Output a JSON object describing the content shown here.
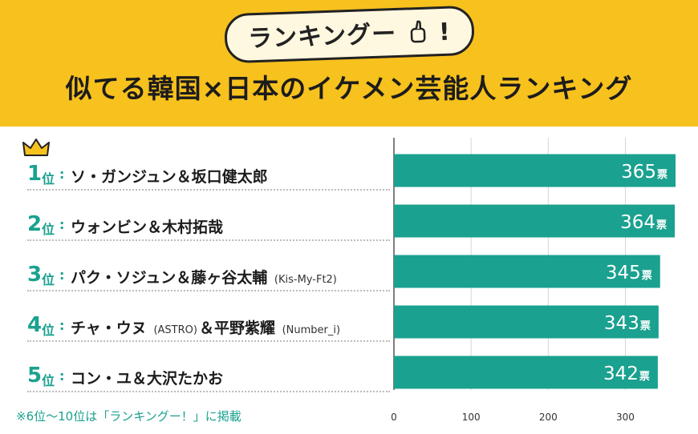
{
  "header": {
    "logo_text": "ランキングー",
    "logo_mark": "!",
    "title": "似てる韓国×日本のイケメン芸能人ランキング"
  },
  "footnote": "※6位〜10位は「ランキングー！」に掲載",
  "colors": {
    "header_bg": "#f7c11e",
    "bar": "#1aa18f",
    "accent": "#1aa18f",
    "crown": "#f7c11e"
  },
  "rank_unit": "位",
  "rank_colon": ":",
  "rows": [
    {
      "rank": "1",
      "name": "ソ・ガンジュン＆坂口健太郎",
      "sub": "",
      "name_after": "",
      "sub2": ""
    },
    {
      "rank": "2",
      "name": "ウォンビン＆木村拓哉",
      "sub": "",
      "name_after": "",
      "sub2": ""
    },
    {
      "rank": "3",
      "name": "パク・ソジュン＆藤ヶ谷太輔",
      "sub": "(Kis-My-Ft2)",
      "name_after": "",
      "sub2": ""
    },
    {
      "rank": "4",
      "name": "チャ・ウヌ",
      "sub": "(ASTRO)",
      "name_after": "＆平野紫耀",
      "sub2": "(Number_i)"
    },
    {
      "rank": "5",
      "name": "コン・ユ＆大沢たかお",
      "sub": "",
      "name_after": "",
      "sub2": ""
    }
  ],
  "chart_data": {
    "type": "bar",
    "orientation": "horizontal",
    "categories": [
      "ソ・ガンジュン＆坂口健太郎",
      "ウォンビン＆木村拓哉",
      "パク・ソジュン＆藤ヶ谷太輔 (Kis-My-Ft2)",
      "チャ・ウヌ (ASTRO) ＆平野紫耀 (Number_i)",
      "コン・ユ＆大沢たかお"
    ],
    "values": [
      365,
      364,
      345,
      343,
      342
    ],
    "value_unit": "票",
    "xlim": [
      0,
      365
    ],
    "xticks": [
      0,
      100,
      200,
      300
    ],
    "grid": true
  }
}
